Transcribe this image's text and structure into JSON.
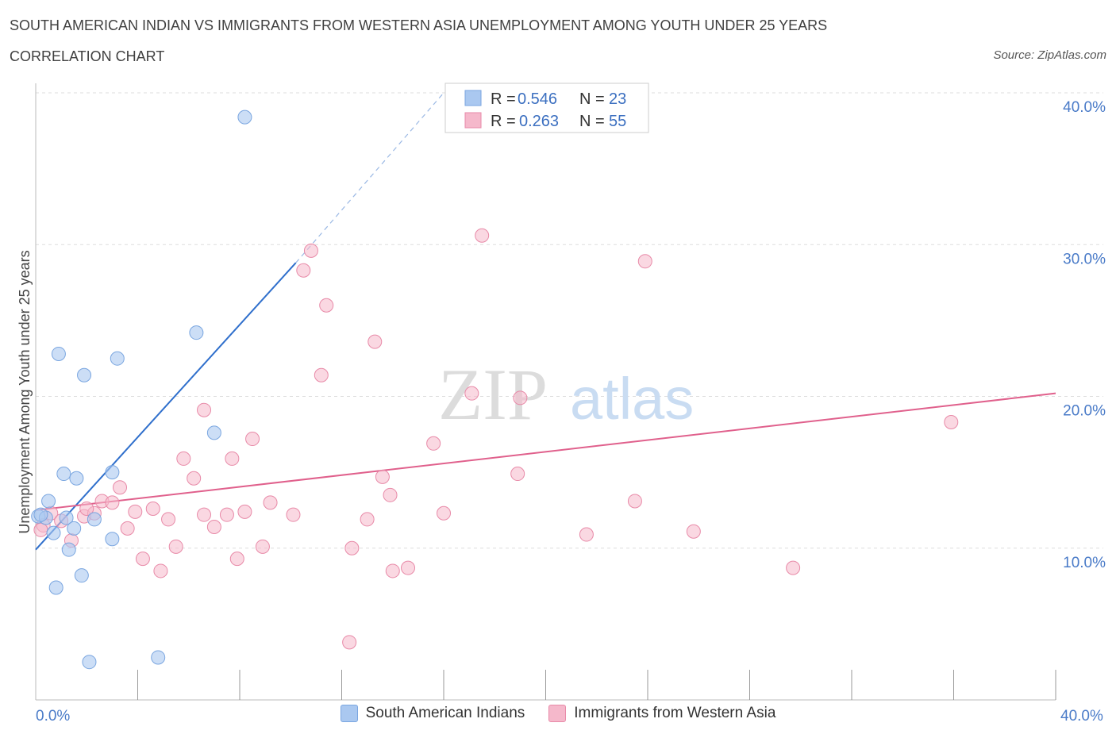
{
  "header": {
    "title": "SOUTH AMERICAN INDIAN VS IMMIGRANTS FROM WESTERN ASIA UNEMPLOYMENT AMONG YOUTH UNDER 25 YEARS",
    "subtitle": "CORRELATION CHART",
    "source": "Source: ZipAtlas.com"
  },
  "watermark": {
    "zip": "ZIP",
    "atlas": "atlas"
  },
  "legend_box": {
    "r_label": "R =",
    "n_label": "N =",
    "rows": [
      {
        "r": "0.546",
        "n": "23"
      },
      {
        "r": "0.263",
        "n": "55"
      }
    ]
  },
  "colors": {
    "blue_fill": "#aac8f0",
    "blue_stroke": "#7aa6e0",
    "blue_line": "#2f6fcc",
    "pink_fill": "#f5b8cb",
    "pink_stroke": "#e88aa8",
    "pink_line": "#e0608c",
    "tick_text": "#4a7bc8"
  },
  "chart_data": {
    "type": "scatter",
    "title": "SOUTH AMERICAN INDIAN VS IMMIGRANTS FROM WESTERN ASIA UNEMPLOYMENT AMONG YOUTH UNDER 25 YEARS",
    "subtitle": "CORRELATION CHART",
    "xlabel": "",
    "ylabel": "Unemployment Among Youth under 25 years",
    "xlim": [
      0,
      40
    ],
    "ylim": [
      0,
      40
    ],
    "x_tick_labels": [
      "0.0%",
      "40.0%"
    ],
    "y_ticks": [
      10,
      20,
      30,
      40
    ],
    "y_tick_labels": [
      "10.0%",
      "20.0%",
      "30.0%",
      "40.0%"
    ],
    "grid": true,
    "legend_position": "top-center",
    "series": [
      {
        "name": "South American Indians",
        "color": "#aac8f0",
        "r": 0.546,
        "n": 23,
        "trend": {
          "x0": 0,
          "y0": 9.9,
          "x1": 10.2,
          "y1": 28.8,
          "dashed_to_x": 16.0,
          "dashed_to_y": 40.0
        },
        "points": [
          [
            0.1,
            12.1
          ],
          [
            0.4,
            12.0
          ],
          [
            0.5,
            13.1
          ],
          [
            0.7,
            11.0
          ],
          [
            0.8,
            7.4
          ],
          [
            0.9,
            22.8
          ],
          [
            1.1,
            14.9
          ],
          [
            1.2,
            12.0
          ],
          [
            1.3,
            9.9
          ],
          [
            1.5,
            11.3
          ],
          [
            1.6,
            14.6
          ],
          [
            1.8,
            8.2
          ],
          [
            1.9,
            21.4
          ],
          [
            2.1,
            2.5
          ],
          [
            2.3,
            11.9
          ],
          [
            3.0,
            15.0
          ],
          [
            3.0,
            10.6
          ],
          [
            3.2,
            22.5
          ],
          [
            4.8,
            2.8
          ],
          [
            6.3,
            24.2
          ],
          [
            7.0,
            17.6
          ],
          [
            8.2,
            38.4
          ],
          [
            0.2,
            12.2
          ]
        ]
      },
      {
        "name": "Immigrants from Western Asia",
        "color": "#f5b8cb",
        "r": 0.263,
        "n": 55,
        "trend": {
          "x0": 0,
          "y0": 12.5,
          "x1": 40,
          "y1": 20.2
        },
        "points": [
          [
            0.3,
            11.5
          ],
          [
            0.6,
            12.3
          ],
          [
            1.0,
            11.8
          ],
          [
            1.4,
            10.5
          ],
          [
            1.9,
            12.1
          ],
          [
            2.3,
            12.3
          ],
          [
            2.6,
            13.1
          ],
          [
            3.0,
            13.0
          ],
          [
            3.3,
            14.0
          ],
          [
            3.6,
            11.3
          ],
          [
            3.9,
            12.4
          ],
          [
            4.2,
            9.3
          ],
          [
            4.6,
            12.6
          ],
          [
            4.9,
            8.5
          ],
          [
            5.2,
            11.9
          ],
          [
            5.5,
            10.1
          ],
          [
            5.8,
            15.9
          ],
          [
            6.2,
            14.6
          ],
          [
            6.6,
            12.2
          ],
          [
            6.6,
            19.1
          ],
          [
            7.0,
            11.4
          ],
          [
            7.5,
            12.2
          ],
          [
            7.7,
            15.9
          ],
          [
            7.9,
            9.3
          ],
          [
            8.2,
            12.4
          ],
          [
            8.5,
            17.2
          ],
          [
            8.9,
            10.1
          ],
          [
            9.2,
            13.0
          ],
          [
            10.1,
            12.2
          ],
          [
            10.5,
            28.3
          ],
          [
            10.8,
            29.6
          ],
          [
            11.2,
            21.4
          ],
          [
            11.4,
            26.0
          ],
          [
            12.3,
            3.8
          ],
          [
            12.4,
            10.0
          ],
          [
            13.0,
            11.9
          ],
          [
            13.3,
            23.6
          ],
          [
            13.6,
            14.7
          ],
          [
            13.9,
            13.5
          ],
          [
            14.0,
            8.5
          ],
          [
            14.6,
            8.7
          ],
          [
            15.6,
            16.9
          ],
          [
            16.0,
            12.3
          ],
          [
            17.1,
            20.2
          ],
          [
            17.5,
            30.6
          ],
          [
            18.9,
            14.9
          ],
          [
            19.0,
            19.9
          ],
          [
            21.6,
            10.9
          ],
          [
            23.5,
            13.1
          ],
          [
            23.9,
            28.9
          ],
          [
            25.8,
            11.1
          ],
          [
            29.7,
            8.7
          ],
          [
            35.9,
            18.3
          ],
          [
            0.2,
            11.2
          ],
          [
            2.0,
            12.6
          ]
        ]
      }
    ]
  }
}
